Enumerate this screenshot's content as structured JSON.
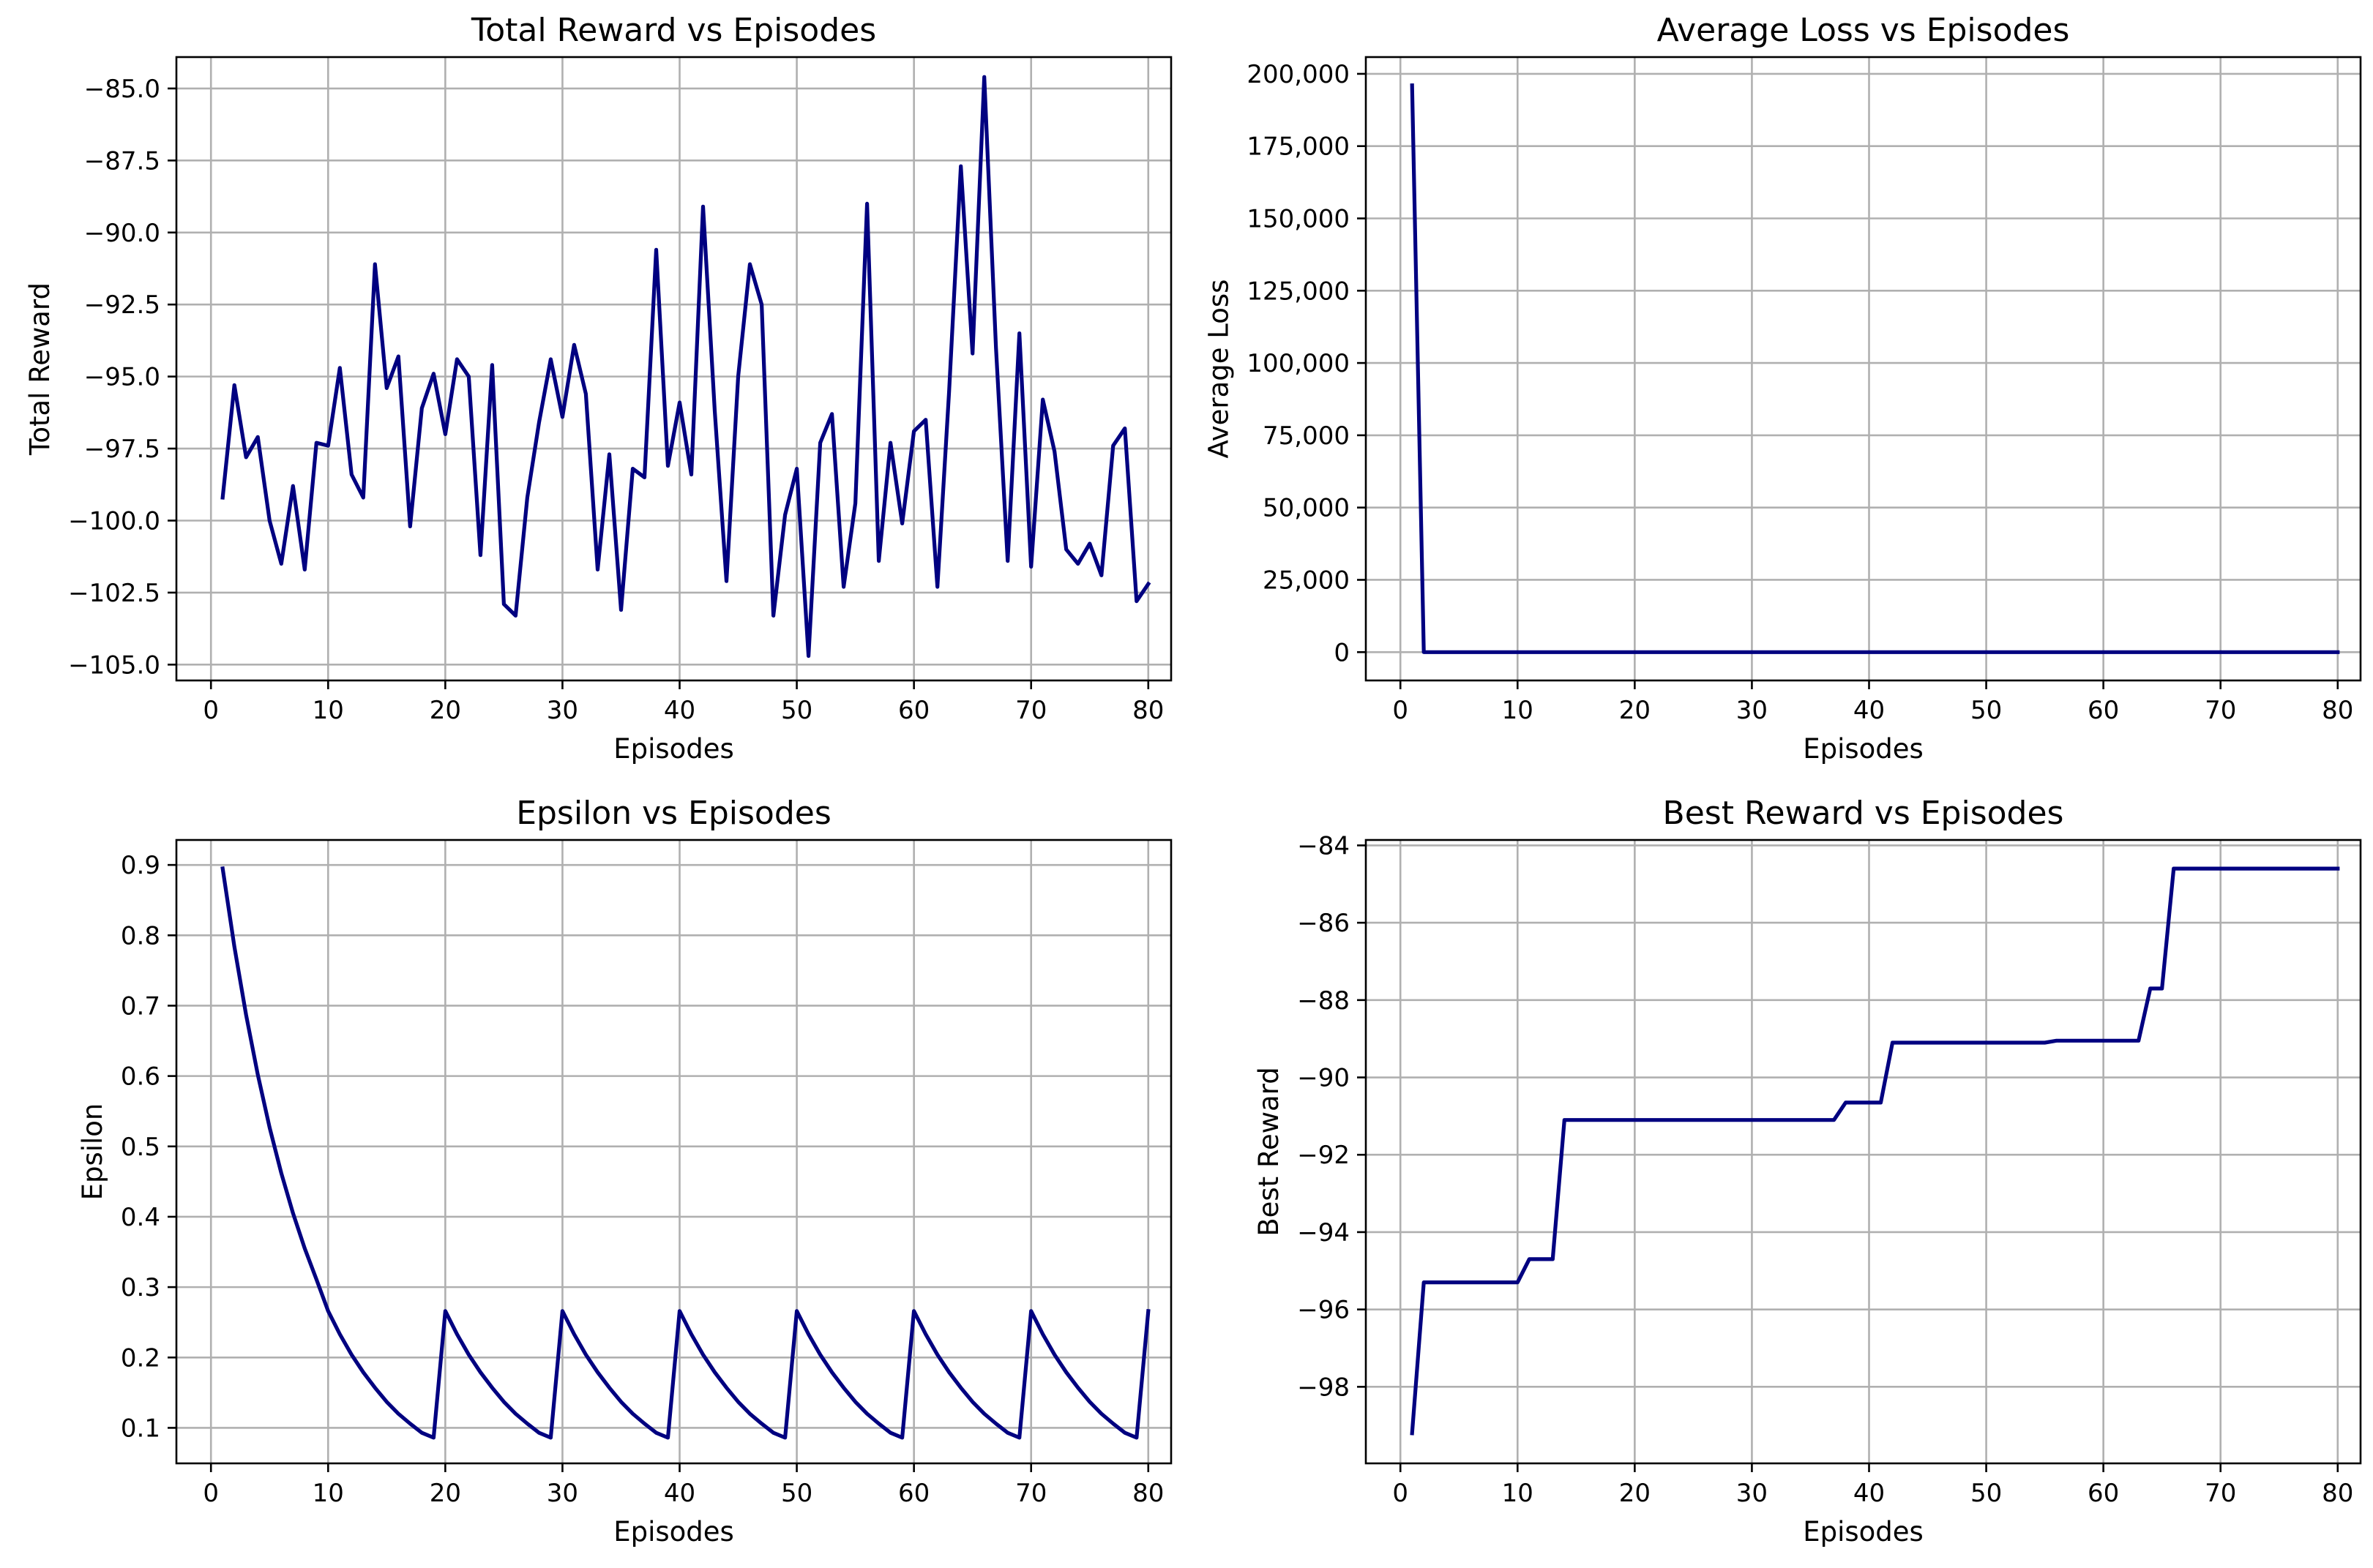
{
  "colors": {
    "line": "#000080",
    "grid": "#b0b0b0",
    "axes": "#000000",
    "background": "#ffffff"
  },
  "chart_data": [
    {
      "id": "reward",
      "type": "line",
      "title": "Total Reward vs Episodes",
      "xlabel": "Episodes",
      "ylabel": "Total Reward",
      "xlim": [
        -2.95,
        81.95
      ],
      "ylim": [
        -105.55,
        -83.91
      ],
      "xticks": [
        0,
        10,
        20,
        30,
        40,
        50,
        60,
        70,
        80
      ],
      "xtick_labels": [
        "0",
        "10",
        "20",
        "30",
        "40",
        "50",
        "60",
        "70",
        "80"
      ],
      "yticks": [
        -85.0,
        -87.5,
        -90.0,
        -92.5,
        -95.0,
        -97.5,
        -100.0,
        -102.5,
        -105.0
      ],
      "ytick_labels": [
        "−85.0",
        "−87.5",
        "−90.0",
        "−92.5",
        "−95.0",
        "−97.5",
        "−100.0",
        "−102.5",
        "−105.0"
      ],
      "grid": true,
      "x": [
        1,
        2,
        3,
        4,
        5,
        6,
        7,
        8,
        9,
        10,
        11,
        12,
        13,
        14,
        15,
        16,
        17,
        18,
        19,
        20,
        21,
        22,
        23,
        24,
        25,
        26,
        27,
        28,
        29,
        30,
        31,
        32,
        33,
        34,
        35,
        36,
        37,
        38,
        39,
        40,
        41,
        42,
        43,
        44,
        45,
        46,
        47,
        48,
        49,
        50,
        51,
        52,
        53,
        54,
        55,
        56,
        57,
        58,
        59,
        60,
        61,
        62,
        63,
        64,
        65,
        66,
        67,
        68,
        69,
        70,
        71,
        72,
        73,
        74,
        75,
        76,
        77,
        78,
        79,
        80
      ],
      "series": [
        {
          "name": "Total Reward",
          "values": [
            -99.2,
            -95.3,
            -97.8,
            -97.1,
            -100.0,
            -101.5,
            -98.8,
            -101.7,
            -97.3,
            -97.4,
            -94.7,
            -98.4,
            -99.2,
            -91.1,
            -95.4,
            -94.3,
            -100.2,
            -96.1,
            -94.9,
            -97.0,
            -94.4,
            -95.0,
            -101.2,
            -94.6,
            -102.9,
            -103.3,
            -99.2,
            -96.6,
            -94.4,
            -96.4,
            -93.9,
            -95.6,
            -101.7,
            -97.7,
            -103.1,
            -98.2,
            -98.5,
            -90.6,
            -98.1,
            -95.9,
            -98.4,
            -89.1,
            -96.2,
            -102.1,
            -95.0,
            -91.1,
            -92.5,
            -103.3,
            -99.8,
            -98.2,
            -104.7,
            -97.3,
            -96.3,
            -102.3,
            -99.4,
            -89.0,
            -101.4,
            -97.3,
            -100.1,
            -96.9,
            -96.5,
            -102.3,
            -95.5,
            -87.7,
            -94.2,
            -84.6,
            -94.0,
            -101.4,
            -93.5,
            -101.6,
            -95.8,
            -97.6,
            -101.0,
            -101.5,
            -100.8,
            -101.9,
            -97.4,
            -96.8,
            -102.8,
            -102.2
          ]
        }
      ]
    },
    {
      "id": "loss",
      "type": "line",
      "title": "Average Loss vs Episodes",
      "xlabel": "Episodes",
      "ylabel": "Average Loss",
      "xlim": [
        -2.95,
        81.95
      ],
      "ylim": [
        -9800,
        205800
      ],
      "xticks": [
        0,
        10,
        20,
        30,
        40,
        50,
        60,
        70,
        80
      ],
      "xtick_labels": [
        "0",
        "10",
        "20",
        "30",
        "40",
        "50",
        "60",
        "70",
        "80"
      ],
      "yticks": [
        200000,
        175000,
        150000,
        125000,
        100000,
        75000,
        50000,
        25000,
        0
      ],
      "ytick_labels": [
        "200,000",
        "175,000",
        "150,000",
        "125,000",
        "100,000",
        "75,000",
        "50,000",
        "25,000",
        "0"
      ],
      "grid": true,
      "x": [
        1,
        2,
        80
      ],
      "series": [
        {
          "name": "Average Loss",
          "values": [
            196000,
            0,
            0
          ]
        }
      ]
    },
    {
      "id": "epsilon",
      "type": "line",
      "title": "Epsilon vs Episodes",
      "xlabel": "Episodes",
      "ylabel": "Epsilon",
      "xlim": [
        -2.95,
        81.95
      ],
      "ylim": [
        0.0495,
        0.9355
      ],
      "xticks": [
        0,
        10,
        20,
        30,
        40,
        50,
        60,
        70,
        80
      ],
      "xtick_labels": [
        "0",
        "10",
        "20",
        "30",
        "40",
        "50",
        "60",
        "70",
        "80"
      ],
      "yticks": [
        0.9,
        0.8,
        0.7,
        0.6,
        0.5,
        0.4,
        0.3,
        0.2,
        0.1
      ],
      "ytick_labels": [
        "0.9",
        "0.8",
        "0.7",
        "0.6",
        "0.5",
        "0.4",
        "0.3",
        "0.2",
        "0.1"
      ],
      "grid": true,
      "x": [
        1,
        2,
        3,
        4,
        5,
        6,
        7,
        8,
        9,
        10,
        11,
        12,
        13,
        14,
        15,
        16,
        17,
        18,
        19,
        20,
        21,
        22,
        23,
        24,
        25,
        26,
        27,
        28,
        29,
        30,
        31,
        32,
        33,
        34,
        35,
        36,
        37,
        38,
        39,
        40,
        41,
        42,
        43,
        44,
        45,
        46,
        47,
        48,
        49,
        50,
        51,
        52,
        53,
        54,
        55,
        56,
        57,
        58,
        59,
        60,
        61,
        62,
        63,
        64,
        65,
        66,
        67,
        68,
        69,
        70,
        71,
        72,
        73,
        74,
        75,
        76,
        77,
        78,
        79,
        80
      ],
      "series": [
        {
          "name": "Epsilon",
          "values": [
            0.895,
            0.784,
            0.687,
            0.602,
            0.527,
            0.462,
            0.405,
            0.355,
            0.311,
            0.266,
            0.233,
            0.204,
            0.179,
            0.157,
            0.137,
            0.12,
            0.106,
            0.093,
            0.086,
            0.266,
            0.233,
            0.204,
            0.179,
            0.157,
            0.137,
            0.12,
            0.106,
            0.093,
            0.086,
            0.266,
            0.233,
            0.204,
            0.179,
            0.157,
            0.137,
            0.12,
            0.106,
            0.093,
            0.086,
            0.266,
            0.233,
            0.204,
            0.179,
            0.157,
            0.137,
            0.12,
            0.106,
            0.093,
            0.086,
            0.266,
            0.233,
            0.204,
            0.179,
            0.157,
            0.137,
            0.12,
            0.106,
            0.093,
            0.086,
            0.266,
            0.233,
            0.204,
            0.179,
            0.157,
            0.137,
            0.12,
            0.106,
            0.093,
            0.086,
            0.266,
            0.233,
            0.204,
            0.179,
            0.157,
            0.137,
            0.12,
            0.106,
            0.093,
            0.086,
            0.266
          ]
        }
      ]
    },
    {
      "id": "best",
      "type": "line",
      "title": "Best Reward vs Episodes",
      "xlabel": "Episodes",
      "ylabel": "Best Reward",
      "xlim": [
        -2.95,
        81.95
      ],
      "ylim": [
        -99.98,
        -83.86
      ],
      "xticks": [
        0,
        10,
        20,
        30,
        40,
        50,
        60,
        70,
        80
      ],
      "xtick_labels": [
        "0",
        "10",
        "20",
        "30",
        "40",
        "50",
        "60",
        "70",
        "80"
      ],
      "yticks": [
        -84,
        -86,
        -88,
        -90,
        -92,
        -94,
        -96,
        -98
      ],
      "ytick_labels": [
        "−84",
        "−86",
        "−88",
        "−90",
        "−92",
        "−94",
        "−96",
        "−98"
      ],
      "grid": true,
      "x": [
        1,
        2,
        3,
        4,
        5,
        6,
        7,
        8,
        9,
        10,
        11,
        12,
        13,
        14,
        15,
        16,
        17,
        18,
        19,
        20,
        21,
        22,
        23,
        24,
        25,
        26,
        27,
        28,
        29,
        30,
        31,
        32,
        33,
        34,
        35,
        36,
        37,
        38,
        39,
        40,
        41,
        42,
        43,
        44,
        45,
        46,
        47,
        48,
        49,
        50,
        51,
        52,
        53,
        54,
        55,
        56,
        57,
        58,
        59,
        60,
        61,
        62,
        63,
        64,
        65,
        66,
        67,
        68,
        69,
        70,
        71,
        72,
        73,
        74,
        75,
        76,
        77,
        78,
        79,
        80
      ],
      "series": [
        {
          "name": "Best Reward",
          "values": [
            -99.2,
            -95.3,
            -95.3,
            -95.3,
            -95.3,
            -95.3,
            -95.3,
            -95.3,
            -95.3,
            -95.3,
            -94.7,
            -94.7,
            -94.7,
            -91.1,
            -91.1,
            -91.1,
            -91.1,
            -91.1,
            -91.1,
            -91.1,
            -91.1,
            -91.1,
            -91.1,
            -91.1,
            -91.1,
            -91.1,
            -91.1,
            -91.1,
            -91.1,
            -91.1,
            -91.1,
            -91.1,
            -91.1,
            -91.1,
            -91.1,
            -91.1,
            -91.1,
            -90.65,
            -90.65,
            -90.65,
            -90.65,
            -89.1,
            -89.1,
            -89.1,
            -89.1,
            -89.1,
            -89.1,
            -89.1,
            -89.1,
            -89.1,
            -89.1,
            -89.1,
            -89.1,
            -89.1,
            -89.1,
            -89.05,
            -89.05,
            -89.05,
            -89.05,
            -89.05,
            -89.05,
            -89.05,
            -89.05,
            -87.7,
            -87.7,
            -84.6,
            -84.6,
            -84.6,
            -84.6,
            -84.6,
            -84.6,
            -84.6,
            -84.6,
            -84.6,
            -84.6,
            -84.6,
            -84.6,
            -84.6,
            -84.6,
            -84.6
          ]
        }
      ]
    }
  ]
}
